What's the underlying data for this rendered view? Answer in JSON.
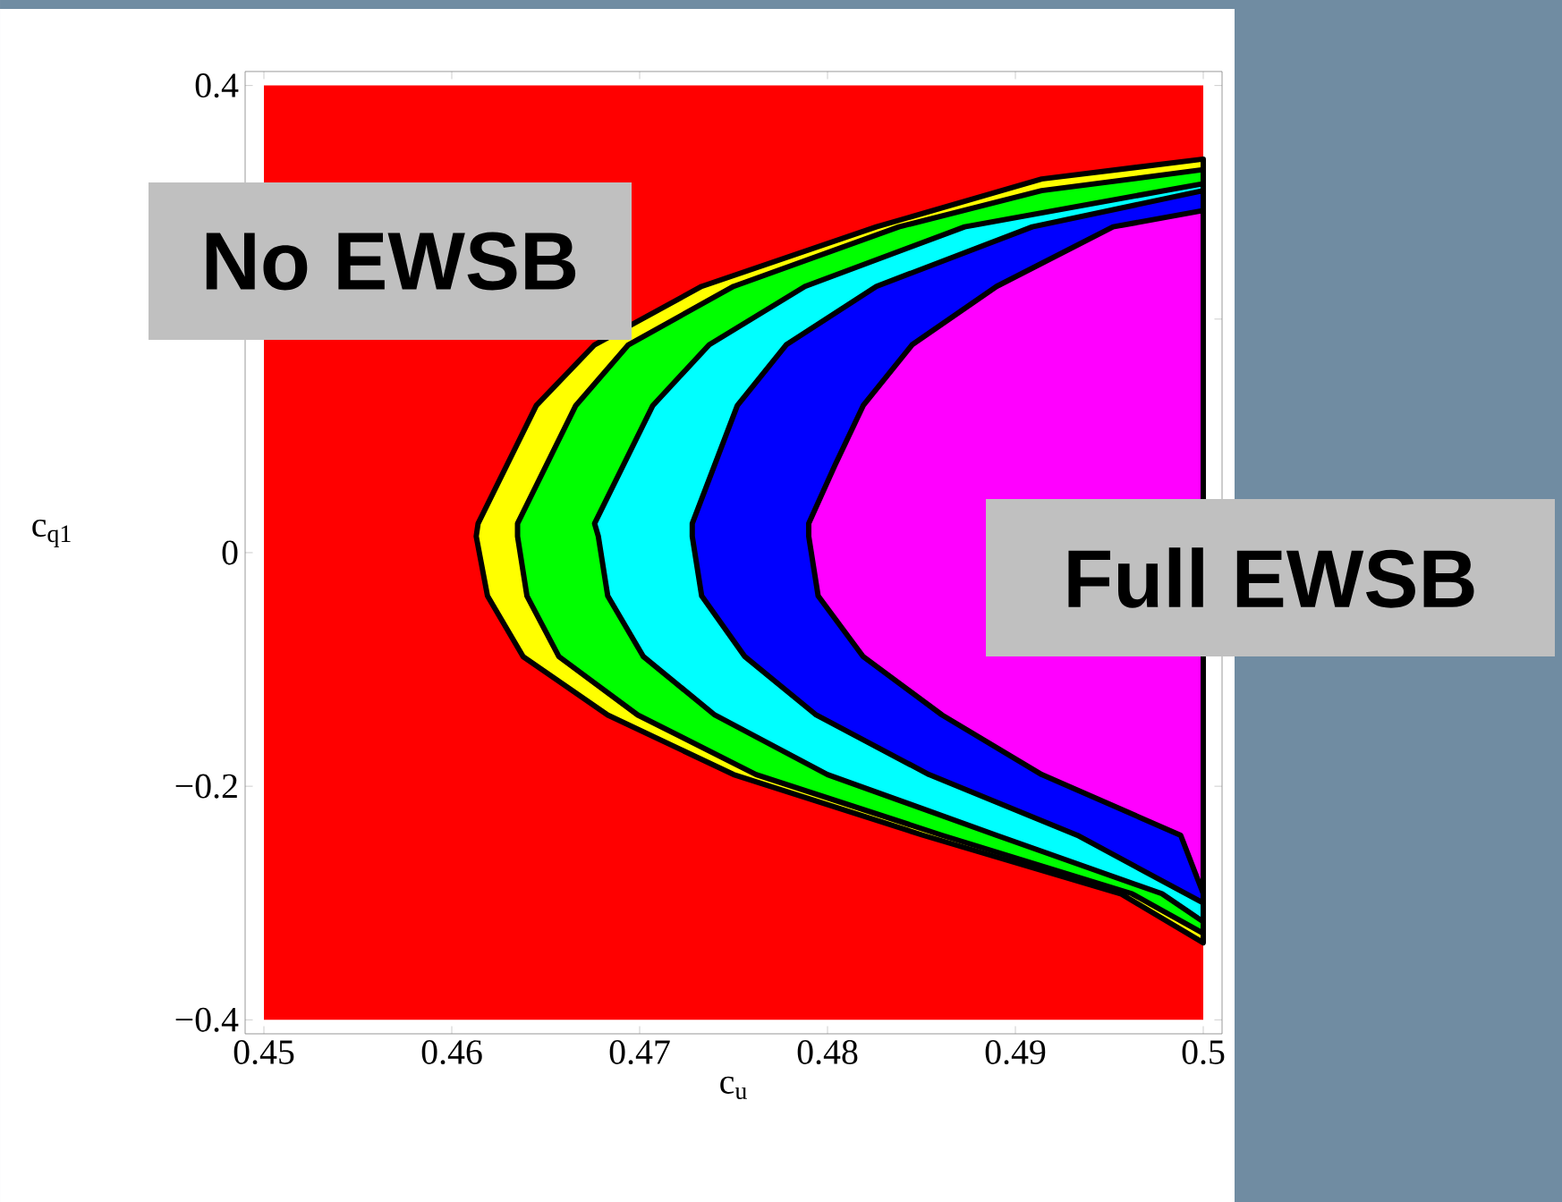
{
  "chart_data": {
    "type": "area",
    "xlabel": "c$_{u}$",
    "ylabel": "c$_{q1}$",
    "xlim": [
      0.449,
      0.501
    ],
    "ylim": [
      -0.412,
      0.412
    ],
    "xticks": [
      {
        "value": 0.45,
        "label": "0.45"
      },
      {
        "value": 0.46,
        "label": "0.46"
      },
      {
        "value": 0.47,
        "label": "0.47"
      },
      {
        "value": 0.48,
        "label": "0.48"
      },
      {
        "value": 0.49,
        "label": "0.49"
      },
      {
        "value": 0.5,
        "label": "0.5"
      }
    ],
    "yticks": [
      {
        "value": -0.4,
        "label": "−0.4"
      },
      {
        "value": -0.2,
        "label": "−0.2"
      },
      {
        "value": 0,
        "label": "0"
      },
      {
        "value": 0.2,
        "label": null
      },
      {
        "value": 0.4,
        "label": "0.4"
      }
    ],
    "series": [
      {
        "color": "#ff0000",
        "x": [
          0.5,
          0.45,
          0.45,
          0.5,
          0.5,
          0.4956,
          0.4851,
          0.475,
          0.4683,
          0.4638,
          0.4619,
          0.4613,
          0.4614,
          0.4645,
          0.4676,
          0.4733,
          0.4826,
          0.4914,
          0.5
        ],
        "values": [
          0.4,
          0.4,
          -0.4,
          -0.4,
          -0.334,
          -0.292,
          -0.242,
          -0.19,
          -0.139,
          -0.089,
          -0.037,
          0.014,
          0.025,
          0.126,
          0.178,
          0.228,
          0.279,
          0.32,
          0.337
        ]
      },
      {
        "color": "#ffff00",
        "x": [
          0.5,
          0.4914,
          0.4826,
          0.4733,
          0.4676,
          0.4645,
          0.4614,
          0.4613,
          0.4619,
          0.4638,
          0.4683,
          0.475,
          0.4851,
          0.4956,
          0.5
        ],
        "values": [
          0.337,
          0.32,
          0.279,
          0.228,
          0.178,
          0.126,
          0.025,
          0.014,
          -0.037,
          -0.089,
          -0.139,
          -0.19,
          -0.242,
          -0.292,
          -0.334
        ]
      },
      {
        "color": "#00ff00",
        "x": [
          0.5,
          0.4914,
          0.4838,
          0.475,
          0.4694,
          0.4666,
          0.4635,
          0.4635,
          0.464,
          0.4657,
          0.4699,
          0.4762,
          0.4861,
          0.4962,
          0.5
        ],
        "values": [
          0.328,
          0.31,
          0.279,
          0.228,
          0.178,
          0.126,
          0.025,
          0.014,
          -0.037,
          -0.089,
          -0.139,
          -0.19,
          -0.242,
          -0.292,
          -0.326
        ]
      },
      {
        "color": "#00ffff",
        "x": [
          0.5,
          0.4873,
          0.4788,
          0.4737,
          0.4707,
          0.4676,
          0.4678,
          0.4683,
          0.4702,
          0.474,
          0.48,
          0.489,
          0.4978,
          0.5
        ],
        "values": [
          0.316,
          0.279,
          0.228,
          0.178,
          0.126,
          0.025,
          0.014,
          -0.037,
          -0.089,
          -0.139,
          -0.19,
          -0.242,
          -0.292,
          -0.316
        ]
      },
      {
        "color": "#0000ff",
        "x": [
          0.5,
          0.4909,
          0.4826,
          0.4778,
          0.4752,
          0.4728,
          0.4728,
          0.4733,
          0.4756,
          0.4794,
          0.4854,
          0.4933,
          0.5
        ],
        "values": [
          0.31,
          0.279,
          0.228,
          0.178,
          0.126,
          0.025,
          0.014,
          -0.037,
          -0.089,
          -0.139,
          -0.19,
          -0.242,
          -0.3
        ]
      },
      {
        "color": "#ff00ff",
        "x": [
          0.5,
          0.4952,
          0.489,
          0.4845,
          0.4819,
          0.4804,
          0.479,
          0.479,
          0.4795,
          0.4819,
          0.4861,
          0.4914,
          0.4988,
          0.5
        ],
        "values": [
          0.293,
          0.279,
          0.228,
          0.178,
          0.126,
          0.075,
          0.025,
          0.014,
          -0.037,
          -0.089,
          -0.139,
          -0.19,
          -0.242,
          -0.292
        ]
      }
    ],
    "annotations": [
      "No EWSB",
      "Full EWSB"
    ]
  }
}
